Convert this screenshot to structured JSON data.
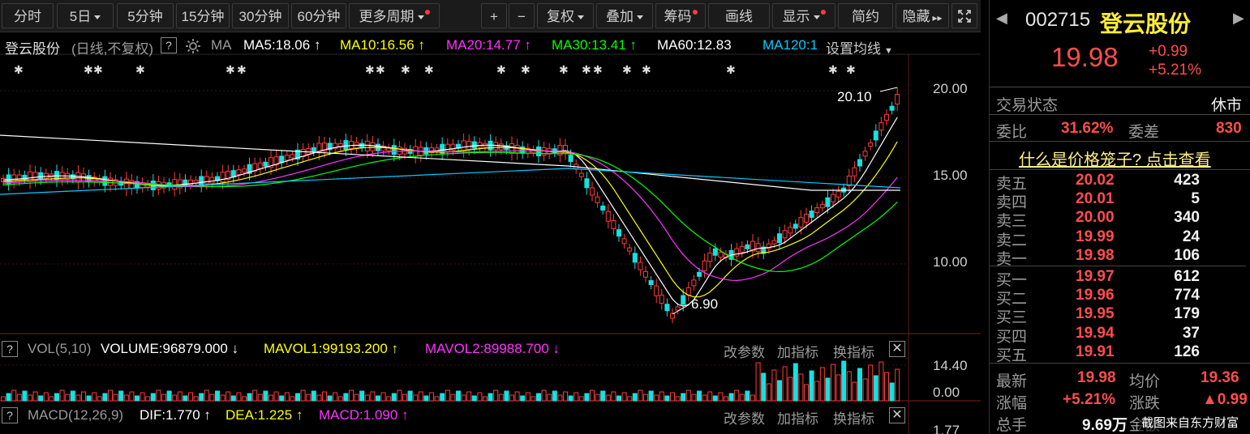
{
  "toolbar": {
    "periods": [
      "分时",
      "5日",
      "5分钟",
      "15分钟",
      "30分钟",
      "60分钟",
      "更多周期"
    ],
    "ops": [
      "+",
      "−",
      "复权",
      "叠加",
      "筹码",
      "画线",
      "显示",
      "简约",
      "隐藏"
    ],
    "expand_icon": "expand-icon"
  },
  "header": {
    "stock_name": "登云股份",
    "mode": "(日线,不复权)",
    "help": "?",
    "ma_label": "MA",
    "ma5": "MA5:18.06",
    "ma10": "MA10:16.56",
    "ma20": "MA20:14.77",
    "ma30": "MA30:13.41",
    "ma60": "MA60:12.83",
    "ma120": "MA120:1",
    "ma_settings": "设置均线",
    "colors": {
      "ma5": "#ffffff",
      "ma10": "#ffff00",
      "ma20": "#ff33ff",
      "ma30": "#00ff00",
      "ma60": "#ffffff",
      "ma120": "#00ccff"
    }
  },
  "price_axis": [
    "20.00",
    "15.00",
    "10.00"
  ],
  "annotations": {
    "high": "20.10",
    "low": "6.90"
  },
  "volume_panel": {
    "help": "?",
    "title": "VOL(5,10)",
    "volume": "VOLUME:96879.000",
    "mavol1": "MAVOL1:99193.200",
    "mavol2": "MAVOL2:89988.700",
    "btn_params": "改参数",
    "btn_add": "加指标",
    "btn_switch": "换指标",
    "axis": [
      "14.40",
      "0.00"
    ]
  },
  "macd_panel": {
    "help": "?",
    "title": "MACD(12,26,9)",
    "dif": "DIF:1.770",
    "dea": "DEA:1.225",
    "macd": "MACD:1.090",
    "btn_params": "改参数",
    "btn_add": "加指标",
    "btn_switch": "换指标",
    "axis": "1.77"
  },
  "quote": {
    "code": "002715",
    "name": "登云股份",
    "price": "19.98",
    "change": "+0.99",
    "change_pct": "+5.21%",
    "trade_status_label": "交易状态",
    "trade_status": "休市",
    "weibi_label": "委比",
    "weibi": "31.62%",
    "weicha_label": "委差",
    "weicha": "830",
    "cage_link": "什么是价格笼子? 点击查看",
    "asks": [
      {
        "label": "卖五",
        "price": "20.02",
        "vol": "423"
      },
      {
        "label": "卖四",
        "price": "20.01",
        "vol": "5"
      },
      {
        "label": "卖三",
        "price": "20.00",
        "vol": "340"
      },
      {
        "label": "卖二",
        "price": "19.99",
        "vol": "24"
      },
      {
        "label": "卖一",
        "price": "19.98",
        "vol": "106"
      }
    ],
    "bids": [
      {
        "label": "买一",
        "price": "19.97",
        "vol": "612"
      },
      {
        "label": "买二",
        "price": "19.96",
        "vol": "774"
      },
      {
        "label": "买三",
        "price": "19.95",
        "vol": "179"
      },
      {
        "label": "买四",
        "price": "19.94",
        "vol": "37"
      },
      {
        "label": "买五",
        "price": "19.91",
        "vol": "126"
      }
    ],
    "latest_label": "最新",
    "latest": "19.98",
    "avg_label": "均价",
    "avg": "19.36",
    "zf_label": "涨幅",
    "zf": "+5.21%",
    "zd_label": "涨跌",
    "zd": "▲0.99",
    "zs_label": "总手",
    "zs": "9.69万",
    "je_label": "金额"
  },
  "watermark": "截图来自东方财富"
}
